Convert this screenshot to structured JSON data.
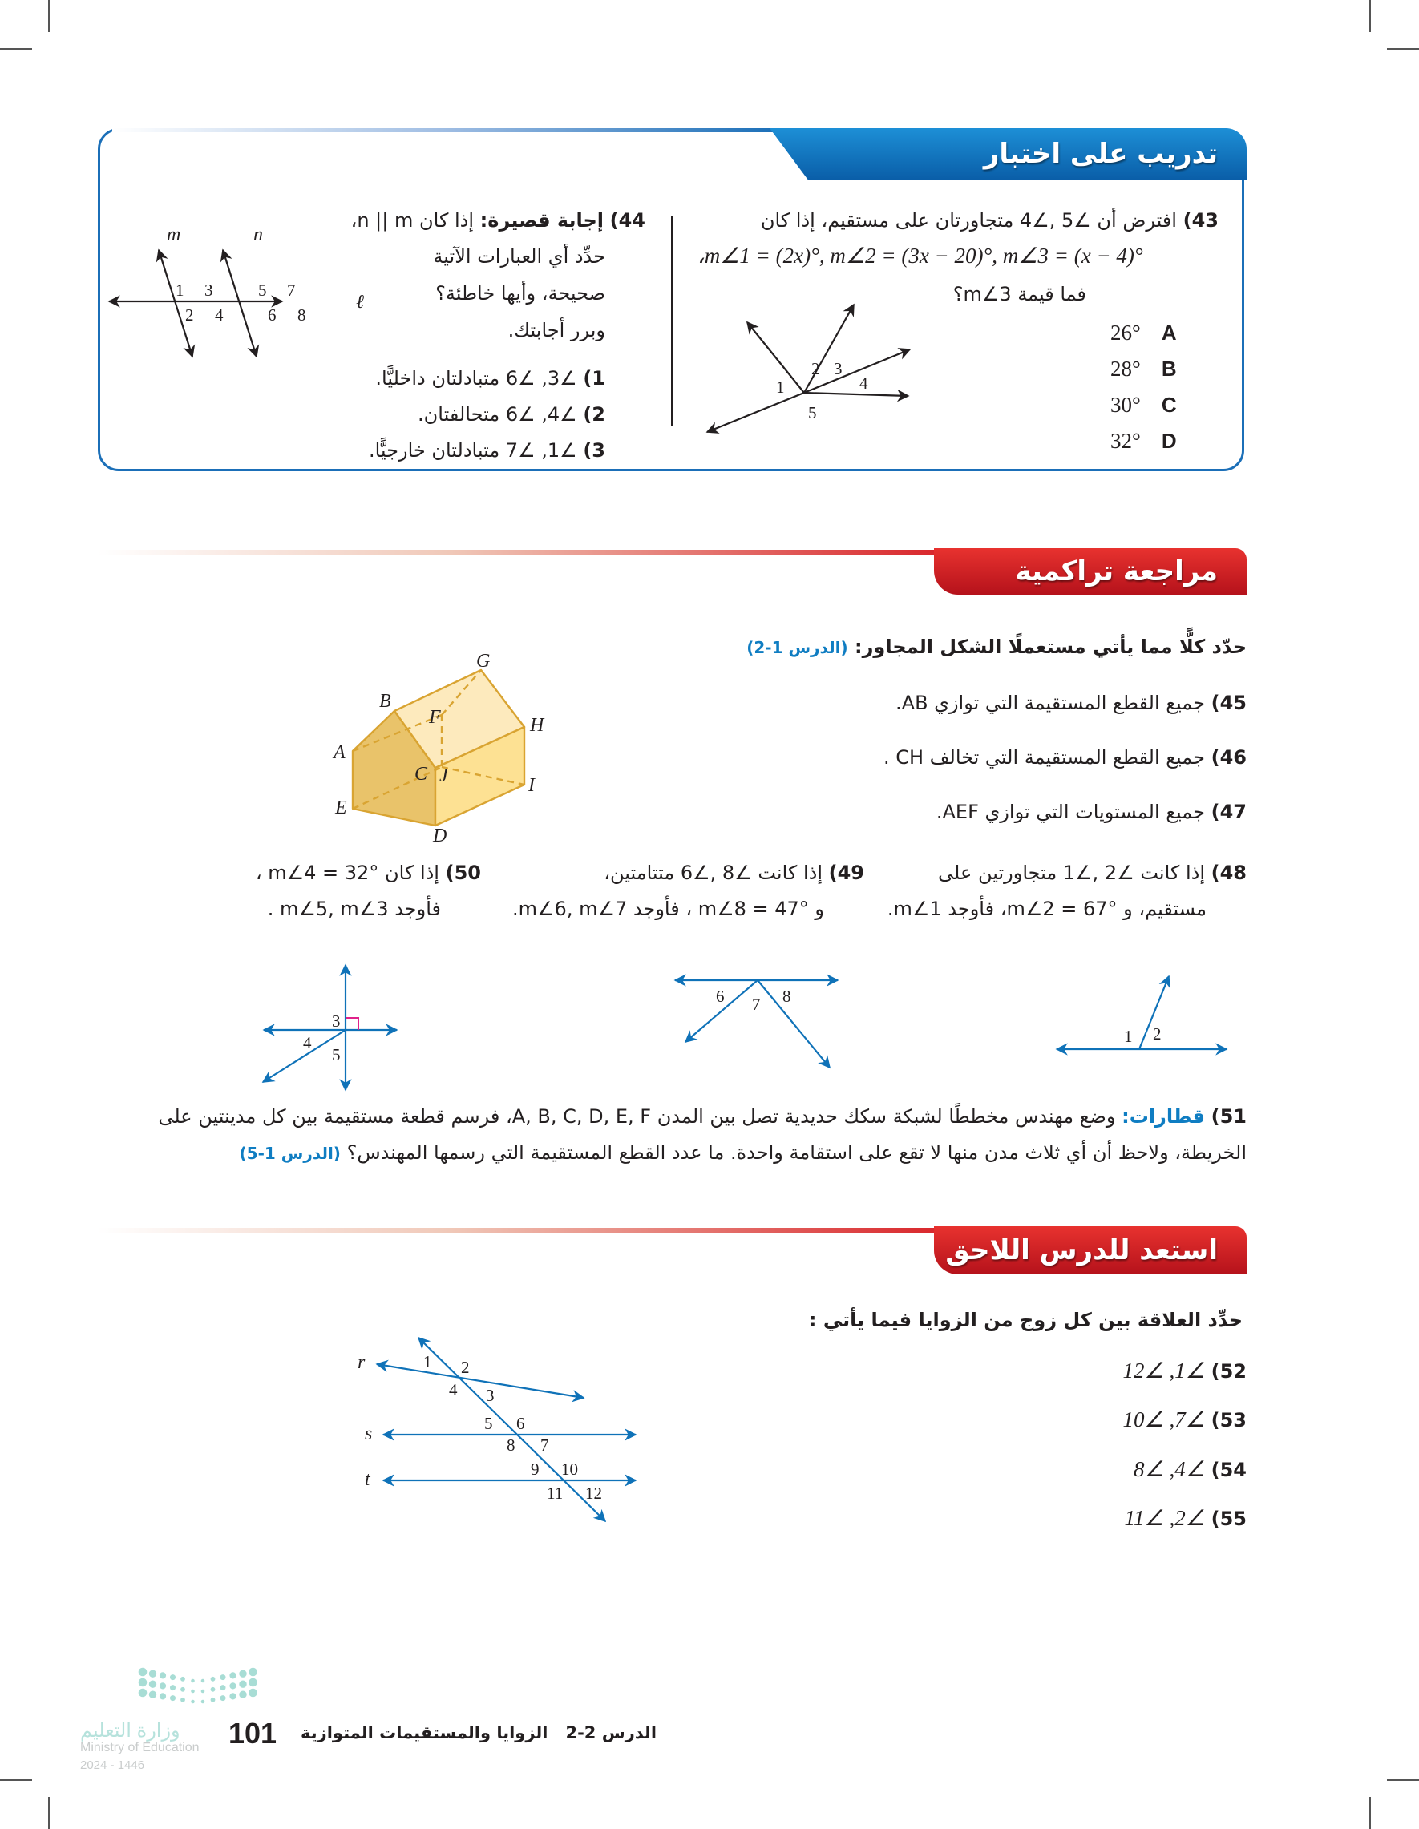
{
  "colors": {
    "accent_blue": "#1b6fb8",
    "accent_red": "#d71920",
    "figure_blue": "#0f72b8",
    "house_fill": "#f4c96b"
  },
  "test_practice": {
    "title": "تدريب على اختبار",
    "q43": {
      "number": "43)",
      "line1": "افترض أن ∠5 ,∠4 متجاورتان على مستقيم، إذا كان",
      "line2": "،m∠1 = (2x)°, m∠2 = (3x − 20)°, m∠3 = (x − 4)°",
      "line3": "فما قيمة m∠3؟",
      "options": [
        {
          "letter": "A",
          "value": "26°"
        },
        {
          "letter": "B",
          "value": "28°"
        },
        {
          "letter": "C",
          "value": "30°"
        },
        {
          "letter": "D",
          "value": "32°"
        }
      ],
      "figure_labels": [
        "1",
        "2",
        "3",
        "4",
        "5"
      ]
    },
    "q44": {
      "number": "44)",
      "label": "إجابة قصيرة:",
      "line1": "إذا كان n || m،",
      "line2": "حدِّد أي العبارات الآتية",
      "line3": "صحيحة، وأيها خاطئة؟",
      "line4": "وبرر أجابتك.",
      "items": [
        {
          "n": "1)",
          "text": "∠3, ∠6 متبادلتان داخليًّا."
        },
        {
          "n": "2)",
          "text": "∠4, ∠6 متحالفتان."
        },
        {
          "n": "3)",
          "text": "∠1, ∠7 متبادلتان خارجيًّا."
        }
      ],
      "figure_labels": {
        "m": "m",
        "n": "n",
        "l": "ℓ",
        "angles": [
          "1",
          "3",
          "2",
          "4",
          "5",
          "7",
          "6",
          "8"
        ]
      }
    }
  },
  "cumulative_review": {
    "title": "مراجعة تراكمية",
    "intro": "حدّد كلًّا مما يأتي مستعملًا الشكل المجاور:",
    "intro_lesson": "(الدرس 1-2)",
    "items": [
      {
        "n": "45)",
        "text": "جميع القطع المستقيمة التي توازي AB."
      },
      {
        "n": "46)",
        "text": "جميع القطع المستقيمة التي تخالف CH ."
      },
      {
        "n": "47)",
        "text": "جميع المستويات التي توازي AEF."
      }
    ],
    "house_labels": {
      "A": "A",
      "B": "B",
      "C": "C",
      "D": "D",
      "E": "E",
      "F": "F",
      "G": "G",
      "H": "H",
      "I": "I",
      "J": "J"
    },
    "q48": {
      "n": "48)",
      "line1": "إذا كانت ∠2 ,∠1 متجاورتين على",
      "line2": "مستقيم، و m∠2 = 67°، فأوجد m∠1.",
      "labels": [
        "1",
        "2"
      ]
    },
    "q49": {
      "n": "49)",
      "line1": "إذا كانت ∠8 ,∠6 متتامتين،",
      "line2": "و m∠8 = 47° ، فأوجد m∠6, m∠7.",
      "labels": [
        "6",
        "7",
        "8"
      ]
    },
    "q50": {
      "n": "50)",
      "line1": "إذا كان m∠4 = 32° ،",
      "line2": "فأوجد m∠5, m∠3 .",
      "labels": [
        "3",
        "4",
        "5"
      ]
    },
    "q51": {
      "n": "51)",
      "label": "قطارات:",
      "line1": "وضع مهندس مخططًا لشبكة سكك حديدية تصل بين المدن A, B, C, D, E, F، فرسم قطعة مستقيمة بين كل مدينتين على",
      "line2": "الخريطة، ولاحظ أن أي ثلاث مدن منها لا تقع على استقامة واحدة. ما عدد القطع المستقيمة التي رسمها المهندس؟",
      "lesson": "(الدرس 1-5)"
    }
  },
  "next_lesson": {
    "title": "استعد للدرس اللاحق",
    "intro": "حدِّد العلاقة بين كل زوج من الزوايا فيما يأتي :",
    "items": [
      {
        "n": "52)",
        "text": "∠1, ∠12"
      },
      {
        "n": "53)",
        "text": "∠7, ∠10"
      },
      {
        "n": "54)",
        "text": "∠4, ∠8"
      },
      {
        "n": "55)",
        "text": "∠2, ∠11"
      }
    ],
    "figure_labels": {
      "r": "r",
      "s": "s",
      "t": "t",
      "angles": [
        "1",
        "2",
        "3",
        "4",
        "5",
        "6",
        "7",
        "8",
        "9",
        "10",
        "11",
        "12"
      ]
    }
  },
  "footer": {
    "lesson": "الدرس 2-2",
    "lesson_title": "الزوايا والمستقيمات المتوازية",
    "page_number": "101",
    "logo": {
      "ar": "وزارة التعليم",
      "en": "Ministry of Education",
      "year": "2024 - 1446"
    }
  }
}
